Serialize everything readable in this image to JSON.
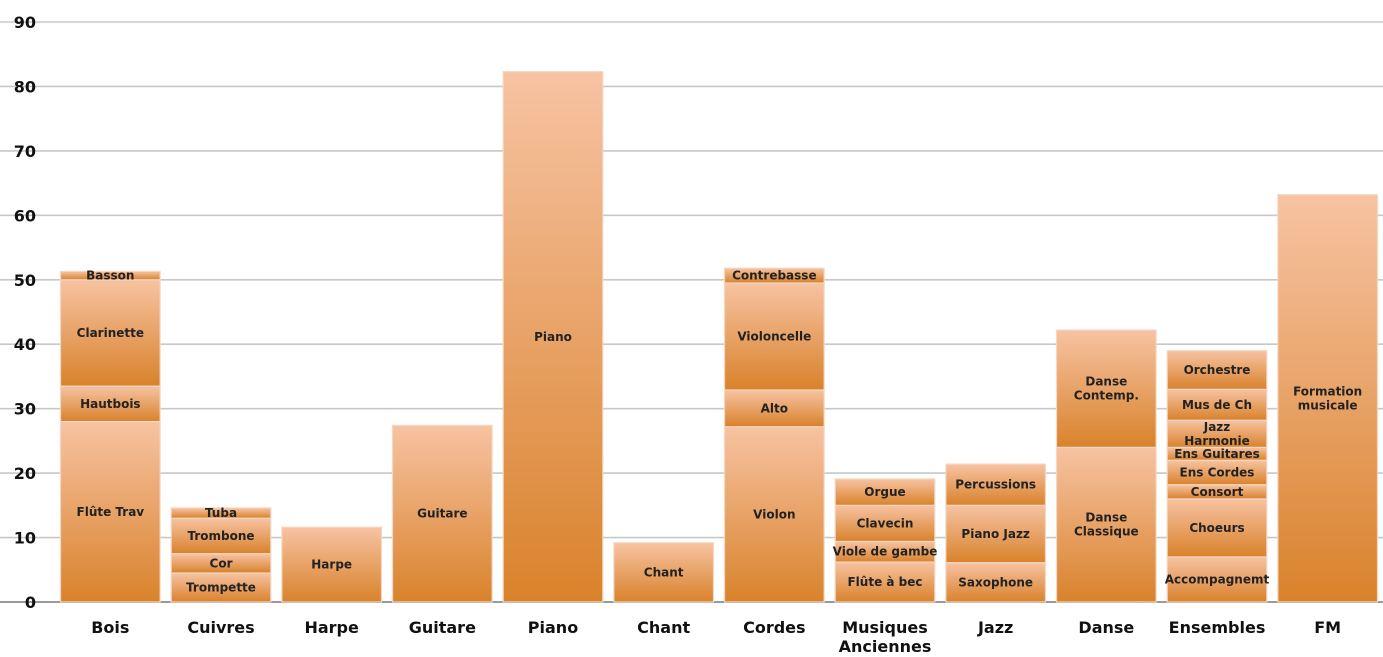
{
  "chart_data": {
    "type": "bar",
    "stacked": true,
    "title": "",
    "xlabel": "",
    "ylabel": "",
    "ylim": [
      0,
      90
    ],
    "yticks": [
      0,
      10,
      20,
      30,
      40,
      50,
      60,
      70,
      80,
      90
    ],
    "grid": true,
    "legend": "none",
    "colors": {
      "bar_top": "#f7c3a2",
      "bar_bottom": "#d9822b",
      "separator": "#f3d7c3",
      "grid": "#c8c8c8"
    },
    "groups": [
      {
        "category": [
          "Bois"
        ],
        "segments": [
          {
            "label": [
              "Flûte Trav"
            ],
            "value": 28
          },
          {
            "label": [
              "Hautbois"
            ],
            "value": 5.5
          },
          {
            "label": [
              "Clarinette"
            ],
            "value": 16.5
          },
          {
            "label": [
              "Basson"
            ],
            "value": 1.3
          }
        ]
      },
      {
        "category": [
          "Cuivres"
        ],
        "segments": [
          {
            "label": [
              "Trompette"
            ],
            "value": 4.5
          },
          {
            "label": [
              "Cor"
            ],
            "value": 3
          },
          {
            "label": [
              "Trombone"
            ],
            "value": 5.5
          },
          {
            "label": [
              "Tuba"
            ],
            "value": 1.6
          }
        ]
      },
      {
        "category": [
          "Harpe"
        ],
        "segments": [
          {
            "label": [
              "Harpe"
            ],
            "value": 11.6
          }
        ]
      },
      {
        "category": [
          "Guitare"
        ],
        "segments": [
          {
            "label": [
              "Guitare"
            ],
            "value": 27.4
          }
        ]
      },
      {
        "category": [
          "Piano"
        ],
        "segments": [
          {
            "label": [
              "Piano"
            ],
            "value": 82.3
          }
        ]
      },
      {
        "category": [
          "Chant"
        ],
        "segments": [
          {
            "label": [
              "Chant"
            ],
            "value": 9.2
          }
        ]
      },
      {
        "category": [
          "Cordes"
        ],
        "segments": [
          {
            "label": [
              "Violon"
            ],
            "value": 27.2
          },
          {
            "label": [
              "Alto"
            ],
            "value": 5.7
          },
          {
            "label": [
              "Violoncelle"
            ],
            "value": 16.6
          },
          {
            "label": [
              "Contrebasse"
            ],
            "value": 2.3
          }
        ]
      },
      {
        "category": [
          "Musiques",
          "Anciennes"
        ],
        "segments": [
          {
            "label": [
              "Flûte à bec"
            ],
            "value": 6.2
          },
          {
            "label": [
              "Viole de gambe"
            ],
            "value": 3.2
          },
          {
            "label": [
              "Clavecin"
            ],
            "value": 5.6
          },
          {
            "label": [
              "Orgue"
            ],
            "value": 4.1
          }
        ]
      },
      {
        "category": [
          "Jazz"
        ],
        "segments": [
          {
            "label": [
              "Saxophone"
            ],
            "value": 6.1
          },
          {
            "label": [
              "Piano Jazz"
            ],
            "value": 8.9
          },
          {
            "label": [
              "Percussions"
            ],
            "value": 6.4
          }
        ]
      },
      {
        "category": [
          "Danse"
        ],
        "segments": [
          {
            "label": [
              "Danse",
              "Classique"
            ],
            "value": 24
          },
          {
            "label": [
              "Danse",
              "Contemp."
            ],
            "value": 18.2
          }
        ]
      },
      {
        "category": [
          "Ensembles"
        ],
        "segments": [
          {
            "label": [
              "Accompagnemt"
            ],
            "value": 7
          },
          {
            "label": [
              "Choeurs"
            ],
            "value": 9
          },
          {
            "label": [
              "Consort"
            ],
            "value": 2.2
          },
          {
            "label": [
              "Ens Cordes"
            ],
            "value": 3.8
          },
          {
            "label": [
              "Ens Guitares"
            ],
            "value": 2
          },
          {
            "label": [
              "Jazz",
              "Harmonie"
            ],
            "value": 4.2
          },
          {
            "label": [
              "Mus de Ch"
            ],
            "value": 4.8
          },
          {
            "label": [
              "Orchestre"
            ],
            "value": 6
          }
        ]
      },
      {
        "category": [
          "FM"
        ],
        "segments": [
          {
            "label": [
              "Formation",
              "musicale"
            ],
            "value": 63.2
          }
        ]
      }
    ]
  }
}
